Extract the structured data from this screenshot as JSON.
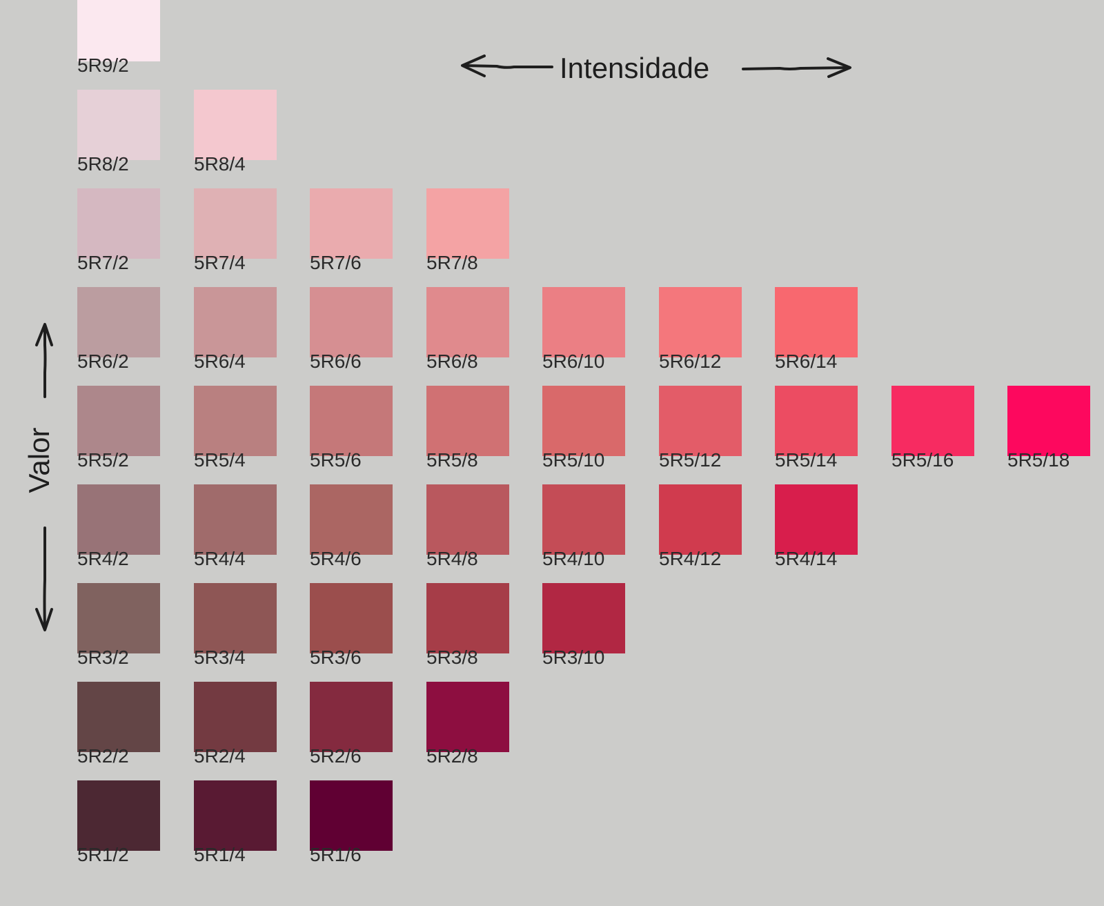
{
  "axes": {
    "horizontal_title": "Intensidade",
    "vertical_title": "Valor"
  },
  "chart_data": {
    "type": "table",
    "hue": "5R",
    "rows": [
      {
        "value": 9,
        "swatches": [
          {
            "label": "5R9/2",
            "chroma": 2,
            "color": "#fbe8ef"
          }
        ]
      },
      {
        "value": 8,
        "swatches": [
          {
            "label": "5R8/2",
            "chroma": 2,
            "color": "#e6d0d7"
          },
          {
            "label": "5R8/4",
            "chroma": 4,
            "color": "#f4c8cf"
          }
        ]
      },
      {
        "value": 7,
        "swatches": [
          {
            "label": "5R7/2",
            "chroma": 2,
            "color": "#d5b8c1"
          },
          {
            "label": "5R7/4",
            "chroma": 4,
            "color": "#dfb1b4"
          },
          {
            "label": "5R7/6",
            "chroma": 6,
            "color": "#eaabae"
          },
          {
            "label": "5R7/8",
            "chroma": 8,
            "color": "#f4a3a4"
          }
        ]
      },
      {
        "value": 6,
        "swatches": [
          {
            "label": "5R6/2",
            "chroma": 2,
            "color": "#bb9da0"
          },
          {
            "label": "5R6/4",
            "chroma": 4,
            "color": "#c99698"
          },
          {
            "label": "5R6/6",
            "chroma": 6,
            "color": "#d68f92"
          },
          {
            "label": "5R6/8",
            "chroma": 8,
            "color": "#e08a8d"
          },
          {
            "label": "5R6/10",
            "chroma": 10,
            "color": "#eb7f84"
          },
          {
            "label": "5R6/12",
            "chroma": 12,
            "color": "#f4777c"
          },
          {
            "label": "5R6/14",
            "chroma": 14,
            "color": "#f8686f"
          }
        ]
      },
      {
        "value": 5,
        "swatches": [
          {
            "label": "5R5/2",
            "chroma": 2,
            "color": "#ad878b"
          },
          {
            "label": "5R5/4",
            "chroma": 4,
            "color": "#b98080"
          },
          {
            "label": "5R5/6",
            "chroma": 6,
            "color": "#c57879"
          },
          {
            "label": "5R5/8",
            "chroma": 8,
            "color": "#d07173"
          },
          {
            "label": "5R5/10",
            "chroma": 10,
            "color": "#d9696a"
          },
          {
            "label": "5R5/12",
            "chroma": 12,
            "color": "#e35c68"
          },
          {
            "label": "5R5/14",
            "chroma": 14,
            "color": "#ec4c62"
          },
          {
            "label": "5R5/16",
            "chroma": 16,
            "color": "#f72b61"
          },
          {
            "label": "5R5/18",
            "chroma": 18,
            "color": "#fd085e"
          }
        ]
      },
      {
        "value": 4,
        "swatches": [
          {
            "label": "5R4/2",
            "chroma": 2,
            "color": "#987377"
          },
          {
            "label": "5R4/4",
            "chroma": 4,
            "color": "#a06b6b"
          },
          {
            "label": "5R4/6",
            "chroma": 6,
            "color": "#ab6663"
          },
          {
            "label": "5R4/8",
            "chroma": 8,
            "color": "#b9585e"
          },
          {
            "label": "5R4/10",
            "chroma": 10,
            "color": "#c44c56"
          },
          {
            "label": "5R4/12",
            "chroma": 12,
            "color": "#d03b4e"
          },
          {
            "label": "5R4/14",
            "chroma": 14,
            "color": "#d81e4c"
          }
        ]
      },
      {
        "value": 3,
        "swatches": [
          {
            "label": "5R3/2",
            "chroma": 2,
            "color": "#80625f"
          },
          {
            "label": "5R3/4",
            "chroma": 4,
            "color": "#8e5655"
          },
          {
            "label": "5R3/6",
            "chroma": 6,
            "color": "#9b4e4d"
          },
          {
            "label": "5R3/8",
            "chroma": 8,
            "color": "#a63d48"
          },
          {
            "label": "5R3/10",
            "chroma": 10,
            "color": "#b12743"
          }
        ]
      },
      {
        "value": 2,
        "swatches": [
          {
            "label": "5R2/2",
            "chroma": 2,
            "color": "#634546"
          },
          {
            "label": "5R2/4",
            "chroma": 4,
            "color": "#733a41"
          },
          {
            "label": "5R2/6",
            "chroma": 6,
            "color": "#842a3f"
          },
          {
            "label": "5R2/8",
            "chroma": 8,
            "color": "#8d0e40"
          }
        ]
      },
      {
        "value": 1,
        "swatches": [
          {
            "label": "5R1/2",
            "chroma": 2,
            "color": "#4c2833"
          },
          {
            "label": "5R1/4",
            "chroma": 4,
            "color": "#591a33"
          },
          {
            "label": "5R1/6",
            "chroma": 6,
            "color": "#600033"
          }
        ]
      }
    ]
  }
}
